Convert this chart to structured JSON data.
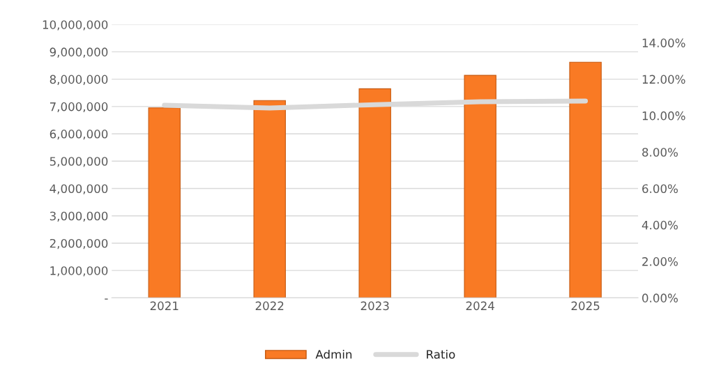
{
  "chart_data": {
    "type": "bar",
    "categories": [
      "2021",
      "2022",
      "2023",
      "2024",
      "2025"
    ],
    "series": [
      {
        "name": "Admin",
        "color": "#f97a24",
        "values": [
          6950000,
          7220000,
          7650000,
          8140000,
          8620000
        ]
      },
      {
        "name": "Ratio",
        "type": "line",
        "axis": "y2",
        "color": "#d9d9d9",
        "values": [
          10.57,
          10.42,
          10.6,
          10.76,
          10.8
        ]
      }
    ],
    "ylim": [
      0,
      10000000
    ],
    "yticks": [
      {
        "value": 0,
        "label": "-"
      },
      {
        "value": 1000000,
        "label": "1,000,000"
      },
      {
        "value": 2000000,
        "label": "2,000,000"
      },
      {
        "value": 3000000,
        "label": "3,000,000"
      },
      {
        "value": 4000000,
        "label": "4,000,000"
      },
      {
        "value": 5000000,
        "label": "5,000,000"
      },
      {
        "value": 6000000,
        "label": "6,000,000"
      },
      {
        "value": 7000000,
        "label": "7,000,000"
      },
      {
        "value": 8000000,
        "label": "8,000,000"
      },
      {
        "value": 9000000,
        "label": "9,000,000"
      },
      {
        "value": 10000000,
        "label": "10,000,000"
      }
    ],
    "y2lim": [
      0,
      15
    ],
    "y2ticks": [
      {
        "value": 0,
        "label": "0.00%"
      },
      {
        "value": 2,
        "label": "2.00%"
      },
      {
        "value": 4,
        "label": "4.00%"
      },
      {
        "value": 6,
        "label": "6.00%"
      },
      {
        "value": 8,
        "label": "8.00%"
      },
      {
        "value": 10,
        "label": "10.00%"
      },
      {
        "value": 12,
        "label": "12.00%"
      },
      {
        "value": 14,
        "label": "14.00%"
      }
    ],
    "grid": "y",
    "legend": "bottom",
    "marker": "none",
    "line_style": "solid"
  }
}
